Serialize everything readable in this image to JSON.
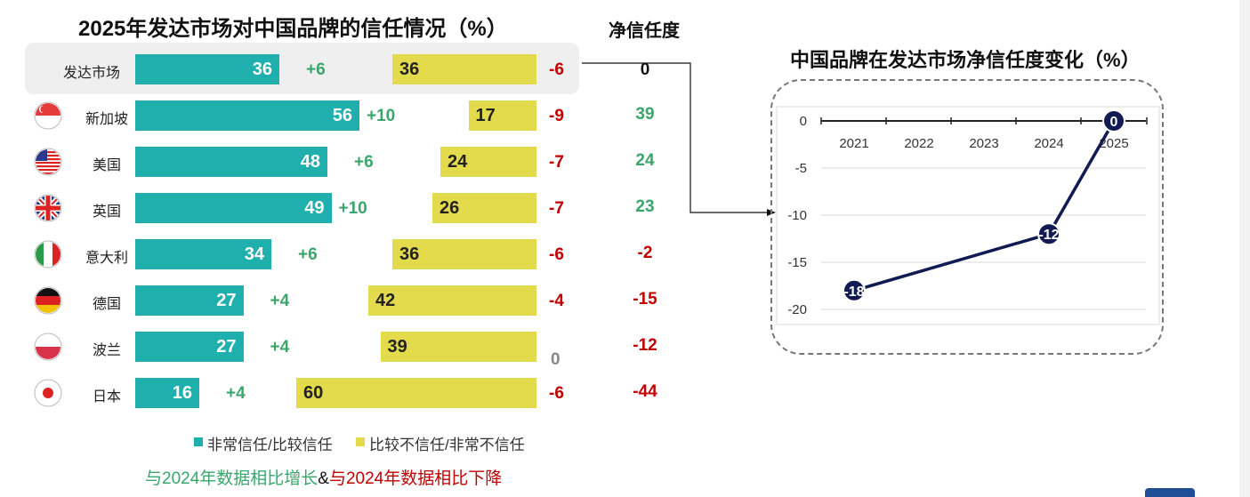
{
  "chart_data": [
    {
      "type": "bar",
      "title": "2025年发达市场对中国品牌的信任情况（%）",
      "net_header": "净信任度",
      "categories": [
        "发达市场",
        "新加坡",
        "美国",
        "英国",
        "意大利",
        "德国",
        "波兰",
        "日本"
      ],
      "series": [
        {
          "name": "非常信任/比较信任",
          "values": [
            36,
            56,
            48,
            49,
            34,
            27,
            27,
            16
          ],
          "change": [
            "+6",
            "+10",
            "+6",
            "+10",
            "+6",
            "+4",
            "+4",
            "+4"
          ]
        },
        {
          "name": "比较不信任/非常不信任",
          "values": [
            36,
            17,
            24,
            26,
            36,
            42,
            39,
            60
          ],
          "change": [
            "-6",
            "-9",
            "-7",
            "-7",
            "-6",
            "-4",
            "0",
            "-6"
          ]
        }
      ],
      "net_trust": [
        "0",
        "39",
        "24",
        "23",
        "-2",
        "-15",
        "-12",
        "-44"
      ],
      "colors": {
        "trust": "#1fb0ad",
        "distrust": "#e3da4c",
        "up": "#3aa66b",
        "down": "#c00000",
        "neutral": "#888888",
        "dark": "#111111"
      },
      "legend": [
        "非常信任/比较信任",
        "比较不信任/非常不信任"
      ],
      "footnote": {
        "up": "与2024年数据相比增长",
        "amp": "&",
        "down": "与2024年数据相比下降"
      }
    },
    {
      "type": "line",
      "title": "中国品牌在发达市场净信任度变化（%）",
      "x": [
        2021,
        2022,
        2023,
        2024,
        2025
      ],
      "points": [
        {
          "x": 2021,
          "y": -18,
          "label": "-18"
        },
        {
          "x": 2024,
          "y": -12,
          "label": "-12"
        },
        {
          "x": 2025,
          "y": 0,
          "label": "0"
        }
      ],
      "xlabels": [
        "2021",
        "2022",
        "2023",
        "2024",
        "2025"
      ],
      "yticks": [
        "0",
        "-5",
        "-10",
        "-15",
        "-20"
      ],
      "ylim": [
        -20,
        0
      ],
      "line_color": "#111a52",
      "grid": true
    }
  ]
}
